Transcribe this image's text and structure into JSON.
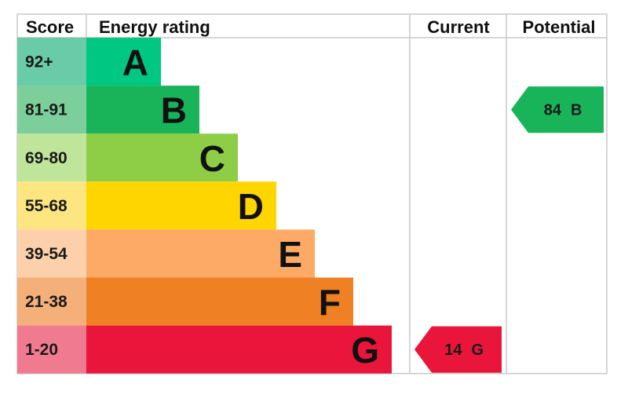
{
  "chart_data": {
    "type": "table",
    "headers": {
      "score": "Score",
      "rating": "Energy rating",
      "current": "Current",
      "potential": "Potential"
    },
    "bands": [
      {
        "letter": "A",
        "range": "92+",
        "color": "#00c781",
        "score_bg": "#6acba8"
      },
      {
        "letter": "B",
        "range": "81-91",
        "color": "#19b459",
        "score_bg": "#7cce9a"
      },
      {
        "letter": "C",
        "range": "69-80",
        "color": "#8dce46",
        "score_bg": "#bfe59a"
      },
      {
        "letter": "D",
        "range": "55-68",
        "color": "#ffd500",
        "score_bg": "#fde580"
      },
      {
        "letter": "E",
        "range": "39-54",
        "color": "#fcaa65",
        "score_bg": "#fdd0ac"
      },
      {
        "letter": "F",
        "range": "21-38",
        "color": "#ef8023",
        "score_bg": "#f5b07a"
      },
      {
        "letter": "G",
        "range": "1-20",
        "color": "#e9153b",
        "score_bg": "#f07b90"
      }
    ],
    "current": {
      "value": 14,
      "letter": "G",
      "color": "#e9153b"
    },
    "potential": {
      "value": 84,
      "letter": "B",
      "color": "#19b459"
    },
    "grid_color": "#c8c8c8"
  }
}
